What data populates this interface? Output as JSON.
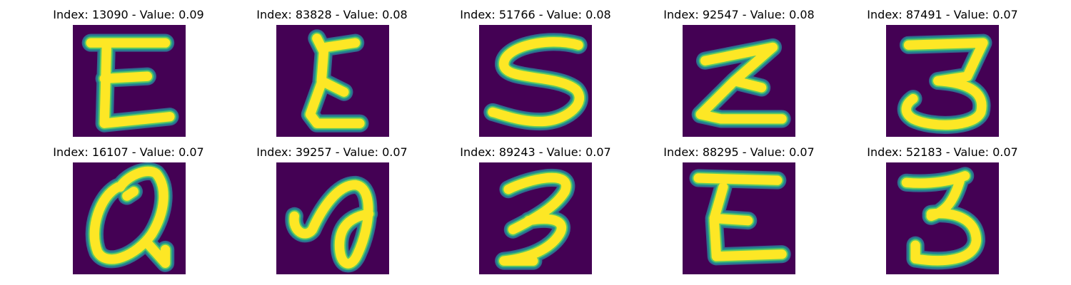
{
  "figure": {
    "colors": {
      "background": "#440154",
      "edge_dark": "#31688e",
      "edge_mid": "#21908d",
      "edge_light": "#5ec962",
      "stroke": "#fde725"
    },
    "panels": [
      {
        "index": "13090",
        "value": "0.09",
        "title": "Index: 13090 - Value: 0.09",
        "glyph": "E"
      },
      {
        "index": "83828",
        "value": "0.08",
        "title": "Index: 83828 - Value: 0.08",
        "glyph": "curly-epsilon"
      },
      {
        "index": "51766",
        "value": "0.08",
        "title": "Index: 51766 - Value: 0.08",
        "glyph": "S"
      },
      {
        "index": "92547",
        "value": "0.08",
        "title": "Index: 92547 - Value: 0.08",
        "glyph": "sigma-like-E"
      },
      {
        "index": "87491",
        "value": "0.07",
        "title": "Index: 87491 - Value: 0.07",
        "glyph": "3"
      },
      {
        "index": "16107",
        "value": "0.07",
        "title": "Index: 16107 - Value: 0.07",
        "glyph": "Q"
      },
      {
        "index": "39257",
        "value": "0.07",
        "title": "Index: 39257 - Value: 0.07",
        "glyph": "a"
      },
      {
        "index": "89243",
        "value": "0.07",
        "title": "Index: 89243 - Value: 0.07",
        "glyph": "3"
      },
      {
        "index": "88295",
        "value": "0.07",
        "title": "Index: 88295 - Value: 0.07",
        "glyph": "E"
      },
      {
        "index": "52183",
        "value": "0.07",
        "title": "Index: 52183 - Value: 0.07",
        "glyph": "3"
      }
    ]
  }
}
